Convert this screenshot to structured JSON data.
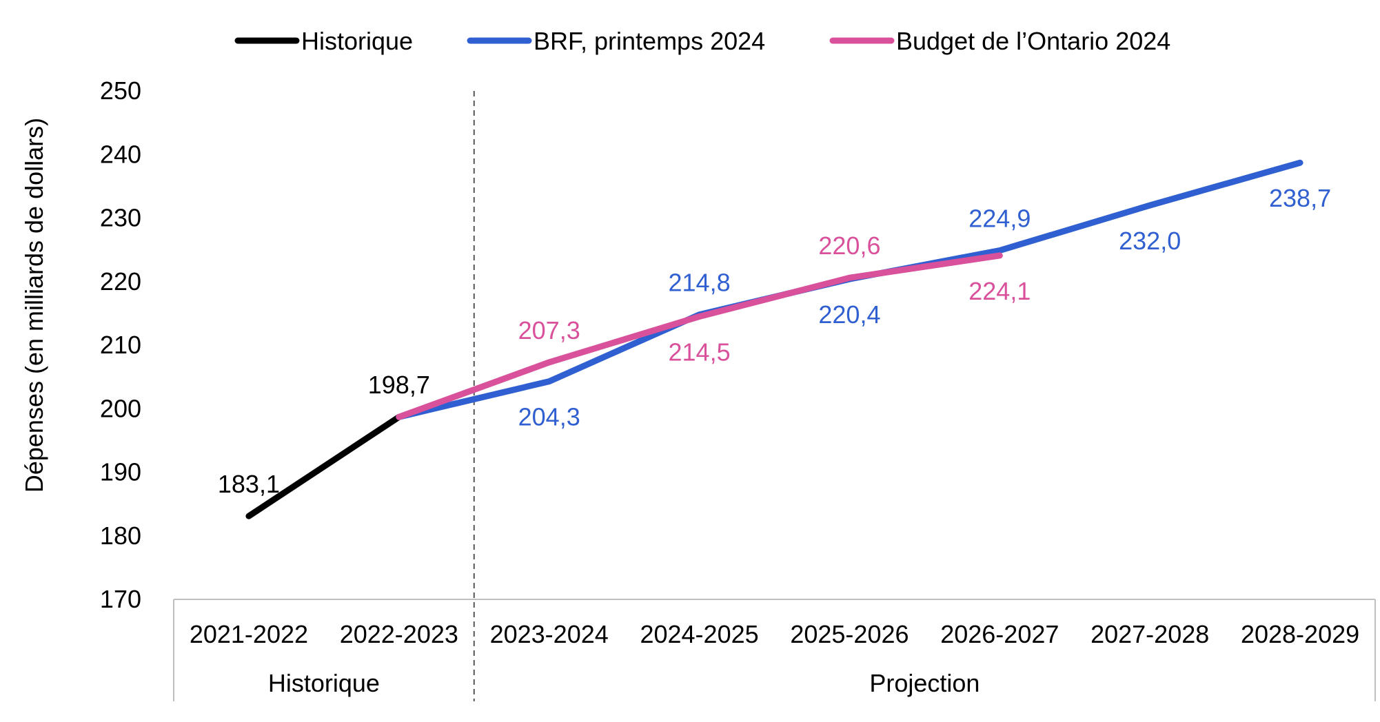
{
  "chart_data": {
    "type": "line",
    "ylabel": "Dépenses (en milliards de dollars)",
    "xlabel": "",
    "ylim": [
      170,
      250
    ],
    "yticks": [
      "170",
      "180",
      "190",
      "200",
      "210",
      "220",
      "230",
      "240",
      "250"
    ],
    "categories": [
      "2021-2022",
      "2022-2023",
      "2023-2024",
      "2024-2025",
      "2025-2026",
      "2026-2027",
      "2027-2028",
      "2028-2029"
    ],
    "groups": [
      {
        "label": "Historique",
        "span": [
          0,
          1
        ]
      },
      {
        "label": "Projection",
        "span": [
          2,
          7
        ]
      }
    ],
    "divider_after_index": 1,
    "legend_position": "top-center",
    "grid": false,
    "series": [
      {
        "name": "Historique",
        "color": "#000000",
        "values": [
          183.1,
          198.7,
          null,
          null,
          null,
          null,
          null,
          null
        ],
        "labels": [
          "183,1",
          "198,7",
          "",
          "",
          "",
          "",
          "",
          ""
        ],
        "label_pos": [
          "above",
          "above",
          "",
          "",
          "",
          "",
          "",
          ""
        ]
      },
      {
        "name": "BRF, printemps 2024",
        "color": "#2F5FD0",
        "values": [
          null,
          198.7,
          204.3,
          214.8,
          220.4,
          224.9,
          232.0,
          238.7
        ],
        "labels": [
          "",
          "",
          "204,3",
          "214,8",
          "220,4",
          "224,9",
          "232,0",
          "238,7"
        ],
        "label_pos": [
          "",
          "",
          "below",
          "above",
          "below",
          "above",
          "below",
          "below"
        ]
      },
      {
        "name": "Budget de l’Ontario 2024",
        "color": "#D9509B",
        "values": [
          null,
          198.7,
          207.3,
          214.5,
          220.6,
          224.1,
          null,
          null
        ],
        "labels": [
          "",
          "",
          "207,3",
          "214,5",
          "220,6",
          "224,1",
          "",
          ""
        ],
        "label_pos": [
          "",
          "",
          "above",
          "below",
          "above",
          "below",
          "",
          ""
        ]
      }
    ]
  }
}
